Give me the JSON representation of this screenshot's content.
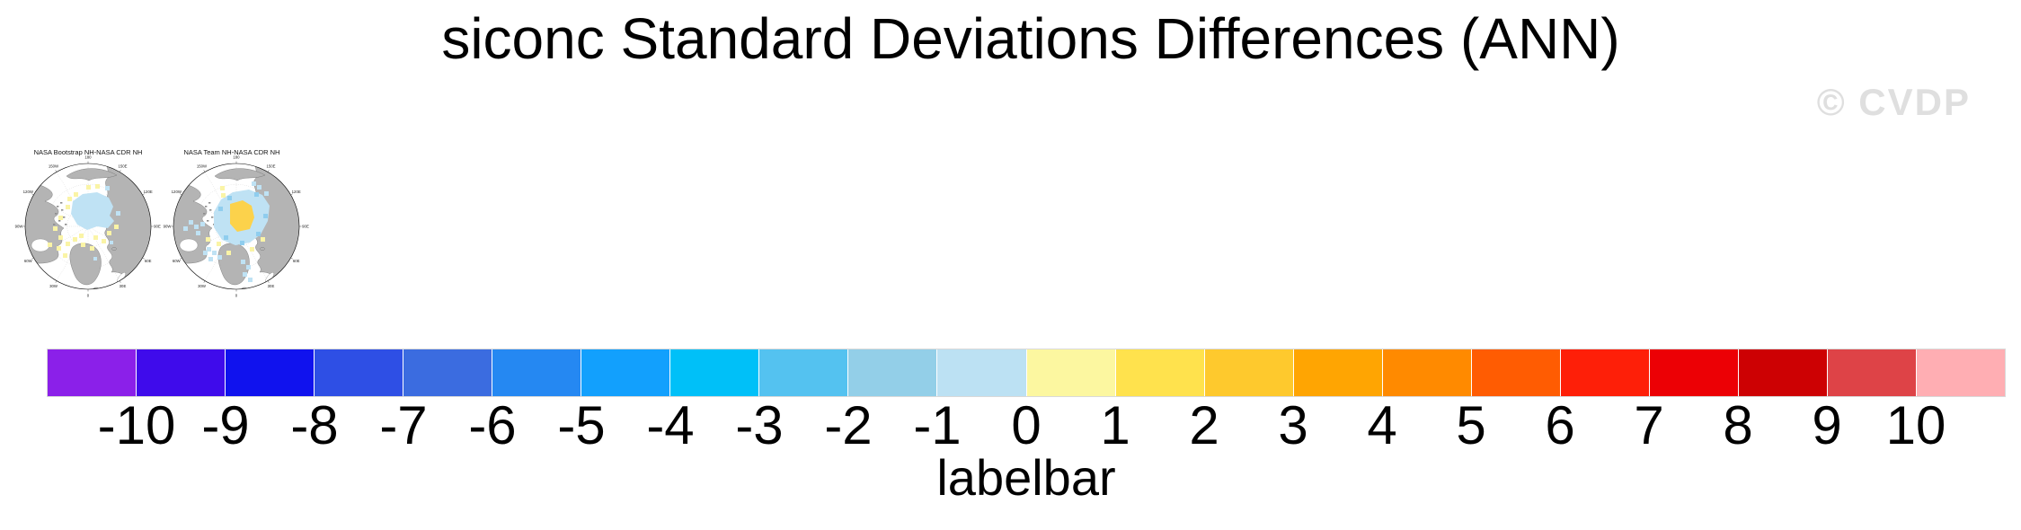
{
  "title": "siconc Standard Deviations Differences (ANN)",
  "watermark": "© CVDP",
  "maps": [
    {
      "title": "NASA Bootstrap NH-NASA CDR NH",
      "tick_labels": [
        "180",
        "150E",
        "120E",
        "90E",
        "60E",
        "30E",
        "0",
        "30W",
        "60W",
        "90W",
        "120W",
        "150W"
      ]
    },
    {
      "title": "NASA Team NH-NASA CDR NH",
      "tick_labels": [
        "180",
        "150E",
        "120E",
        "90E",
        "60E",
        "30E",
        "0",
        "30W",
        "60W",
        "90W",
        "120W",
        "150W"
      ]
    }
  ],
  "map_colors": {
    "land": "#b4b4b4",
    "ocean": "#ffffff",
    "diff_blue": "#bfe2f4",
    "diff_blue_deep": "#8fcdee",
    "diff_yellow": "#faf4a6",
    "diff_gold": "#fcd24b"
  },
  "colorbar": {
    "label": "labelbar",
    "tick_labels": [
      "-10",
      "-9",
      "-8",
      "-7",
      "-6",
      "-5",
      "-4",
      "-3",
      "-2",
      "-1",
      "0",
      "1",
      "2",
      "3",
      "4",
      "5",
      "6",
      "7",
      "8",
      "9",
      "10"
    ],
    "colors": [
      "#8b20e9",
      "#3f0beb",
      "#1012ee",
      "#2e4fe5",
      "#3b6ce0",
      "#2588f2",
      "#12a0fd",
      "#00c0f8",
      "#54c2f0",
      "#93cfe8",
      "#bce1f3",
      "#fcf7a0",
      "#ffe24d",
      "#fec92d",
      "#ffa502",
      "#ff8a00",
      "#ff5c02",
      "#fe1f08",
      "#ec0005",
      "#cd0103",
      "#de4347",
      "#ffaeb3"
    ]
  },
  "chart_data": {
    "type": "heatmap",
    "title": "siconc Standard Deviations Differences (ANN)",
    "panels": [
      "NASA Bootstrap NH-NASA CDR NH",
      "NASA Team NH-NASA CDR NH"
    ],
    "projection": "north-polar-stereographic",
    "colorbar_label": "labelbar",
    "levels": [
      -10,
      -9,
      -8,
      -7,
      -6,
      -5,
      -4,
      -3,
      -2,
      -1,
      0,
      1,
      2,
      3,
      4,
      5,
      6,
      7,
      8,
      9,
      10
    ],
    "palette": [
      "#8b20e9",
      "#3f0beb",
      "#1012ee",
      "#2e4fe5",
      "#3b6ce0",
      "#2588f2",
      "#12a0fd",
      "#00c0f8",
      "#54c2f0",
      "#93cfe8",
      "#bce1f3",
      "#fcf7a0",
      "#ffe24d",
      "#fec92d",
      "#ffa502",
      "#ff8a00",
      "#ff5c02",
      "#fe1f08",
      "#ec0005",
      "#cd0103",
      "#de4347",
      "#ffaeb3"
    ],
    "legend_position": "bottom",
    "notes": "Two small Arctic maps; differences mostly between -1 and +2: pale blue and pale yellow patches over the Arctic Ocean, stronger yellow (1 to 2) blob near the pole in the NASA Team panel"
  }
}
